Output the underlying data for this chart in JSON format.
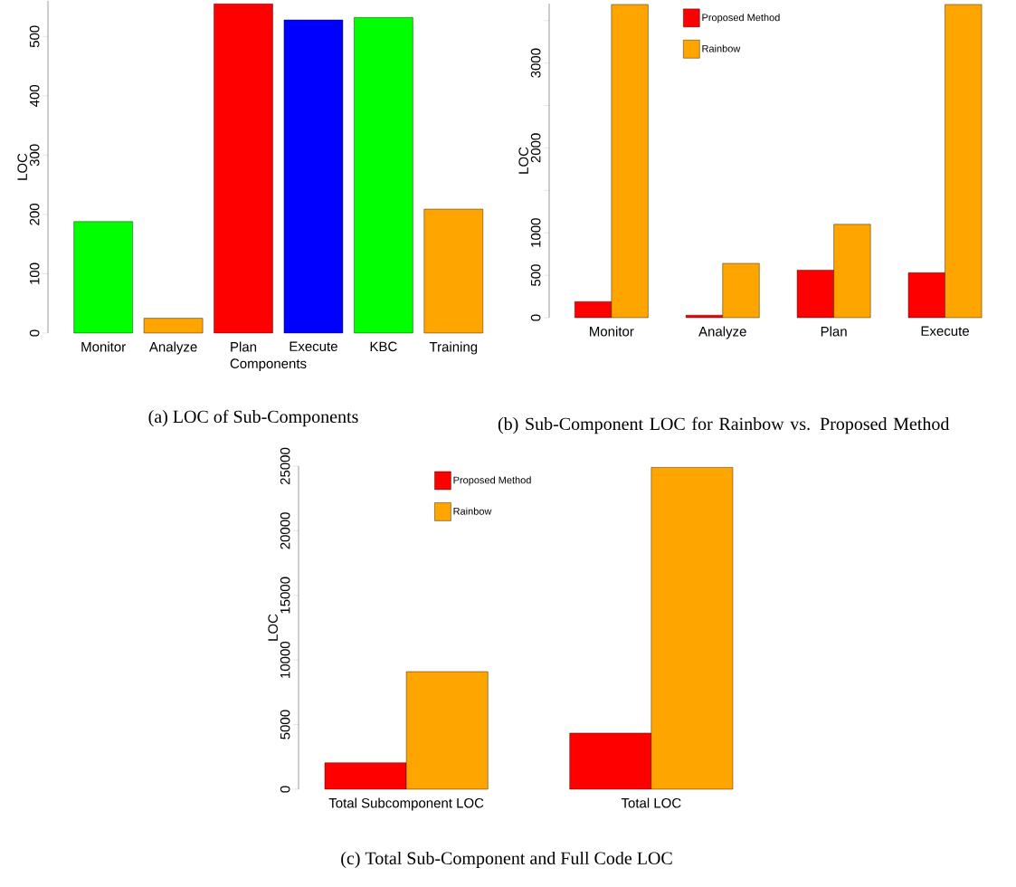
{
  "chart_data": [
    {
      "type": "bar",
      "categories": [
        "Monitor",
        "Analyze",
        "Plan",
        "Execute",
        "KBC",
        "Training"
      ],
      "values": [
        188,
        25,
        555,
        528,
        532,
        209
      ],
      "colors": [
        "#00ff00",
        "#ffa500",
        "#ff0000",
        "#0000ff",
        "#00ff00",
        "#ffa500"
      ],
      "xlabel": "Components",
      "ylabel": "LOC",
      "ylim": [
        0,
        560
      ],
      "yticks": [
        0,
        100,
        200,
        300,
        400,
        500
      ],
      "annotations": [
        "(a) LOC of Sub-Components"
      ]
    },
    {
      "type": "bar",
      "categories": [
        "Monitor",
        "Analyze",
        "Plan",
        "Execute"
      ],
      "series": [
        {
          "name": "Proposed Method",
          "color": "#ff0000",
          "values": [
            190,
            30,
            560,
            530
          ]
        },
        {
          "name": "Rainbow",
          "color": "#ffa500",
          "values": [
            3690,
            640,
            1100,
            3690
          ]
        }
      ],
      "ylabel": "LOC",
      "ylim": [
        0,
        3700
      ],
      "yticks": [
        0,
        500,
        1000,
        {
          "value": 1500,
          "label": null
        },
        2000,
        {
          "value": 2500,
          "label": null
        },
        3000,
        {
          "value": 3500,
          "label": null
        }
      ],
      "legend": "top left",
      "annotations": [
        "(b) Sub-Component LOC for Rainbow vs. Proposed Method"
      ]
    },
    {
      "type": "bar",
      "categories": [
        "Total Subcomponent LOC",
        "Total LOC"
      ],
      "series": [
        {
          "name": "Proposed Method",
          "color": "#ff0000",
          "values": [
            2050,
            4350
          ]
        },
        {
          "name": "Rainbow",
          "color": "#ffa500",
          "values": [
            9100,
            24900
          ]
        }
      ],
      "ylabel": "LOC",
      "ylim": [
        0,
        25000
      ],
      "yticks": [
        0,
        5000,
        10000,
        15000,
        20000,
        25000
      ],
      "legend": "top left",
      "annotations": [
        "(c) Total Sub-Component and Full Code LOC"
      ]
    }
  ]
}
